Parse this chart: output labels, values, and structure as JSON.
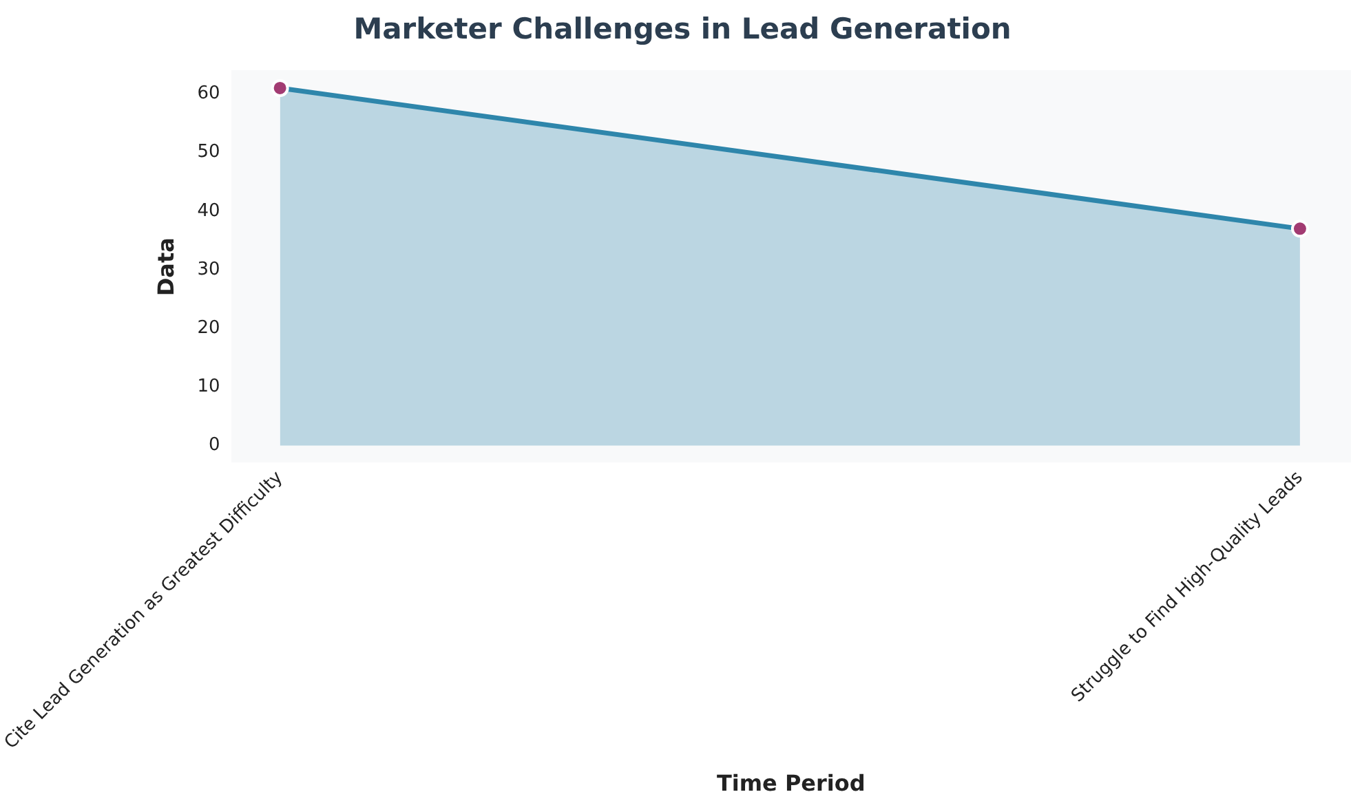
{
  "chart_data": {
    "type": "area",
    "title": "Marketer Challenges in Lead Generation",
    "xlabel": "Time Period",
    "ylabel": "Data",
    "categories": [
      "Cite Lead Generation as Greatest Difficulty",
      "Struggle to Find High-Quality Leads"
    ],
    "series": [
      {
        "color": "#2e86ab",
        "values": [
          61,
          37
        ]
      }
    ],
    "ylim": [
      -3,
      64
    ],
    "yticks": [
      0,
      10,
      20,
      30,
      40,
      50,
      60
    ],
    "grid": false,
    "legend": false,
    "marker": "circle",
    "line_style": "solid"
  }
}
